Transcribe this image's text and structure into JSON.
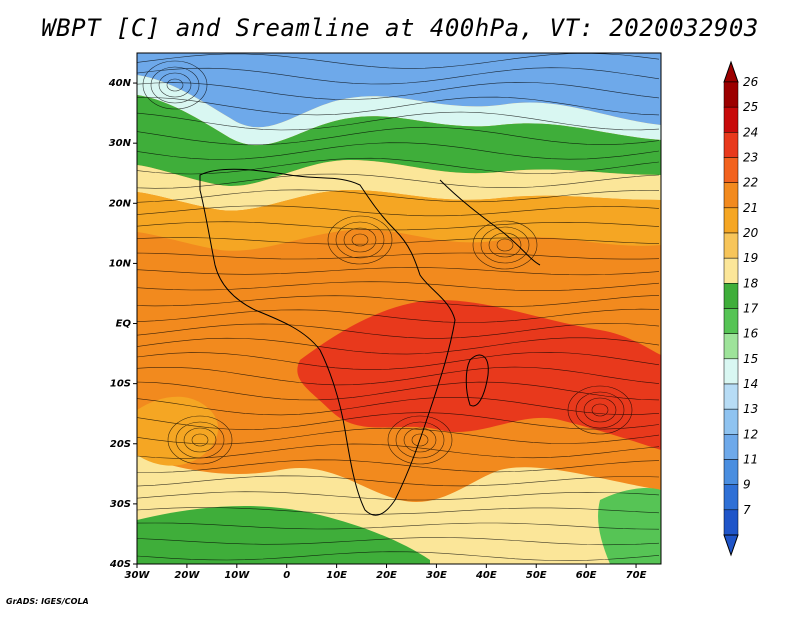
{
  "title": "WBPT [C] and Sreamline at 400hPa, VT: 2020032903",
  "credit": "GrADS: IGES/COLA",
  "map": {
    "lat_labels": [
      "40N",
      "30N",
      "20N",
      "10N",
      "EQ",
      "10S",
      "20S",
      "30S",
      "40S"
    ],
    "lat_values": [
      40,
      30,
      20,
      10,
      0,
      -10,
      -20,
      -30,
      -40
    ],
    "lon_labels": [
      "30W",
      "20W",
      "10W",
      "0",
      "10E",
      "20E",
      "30E",
      "40E",
      "50E",
      "60E",
      "70E"
    ],
    "lon_values": [
      -30,
      -20,
      -10,
      0,
      10,
      20,
      30,
      40,
      50,
      60,
      70
    ],
    "lat_range": [
      -40,
      45
    ],
    "lon_range": [
      -30,
      75
    ]
  },
  "colorbar": {
    "labels": [
      "26",
      "25",
      "24",
      "23",
      "22",
      "21",
      "20",
      "19",
      "18",
      "17",
      "16",
      "15",
      "14",
      "13",
      "12",
      "11",
      "9",
      "7"
    ],
    "colors": [
      "#9c0000",
      "#c80a0a",
      "#e8391c",
      "#f2621e",
      "#f28a1e",
      "#f5a623",
      "#f7c55a",
      "#fbe699",
      "#3fae3a",
      "#56c455",
      "#9ee39a",
      "#d9f7f2",
      "#b7dcf5",
      "#8fc3f0",
      "#6ea9ea",
      "#4a8ee0",
      "#2f70d6",
      "#1f55c9"
    ]
  }
}
